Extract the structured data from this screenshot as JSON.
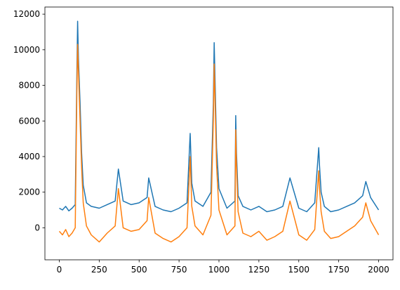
{
  "chart_data": {
    "type": "line",
    "title": "",
    "xlabel": "",
    "ylabel": "",
    "xlim": [
      -90,
      2090
    ],
    "ylim": [
      -1800,
      12400
    ],
    "grid": false,
    "legend": "none",
    "x_ticks": [
      0,
      250,
      500,
      750,
      1000,
      1250,
      1500,
      1750,
      2000
    ],
    "y_ticks": [
      0,
      2000,
      4000,
      6000,
      8000,
      10000,
      12000
    ],
    "x_tick_labels": [
      "0",
      "250",
      "500",
      "750",
      "1000",
      "1250",
      "1500",
      "1750",
      "2000"
    ],
    "y_tick_labels": [
      "0",
      "2000",
      "4000",
      "6000",
      "8000",
      "10000",
      "12000"
    ],
    "series": [
      {
        "color": "#1f77b4",
        "x": [
          0,
          20,
          40,
          60,
          80,
          100,
          110,
          115,
          120,
          130,
          140,
          150,
          170,
          200,
          250,
          300,
          350,
          370,
          400,
          450,
          500,
          550,
          560,
          600,
          650,
          700,
          750,
          800,
          820,
          830,
          850,
          900,
          950,
          965,
          970,
          975,
          985,
          1000,
          1050,
          1100,
          1105,
          1110,
          1120,
          1150,
          1200,
          1250,
          1300,
          1350,
          1400,
          1445,
          1500,
          1550,
          1600,
          1625,
          1630,
          1640,
          1660,
          1700,
          1750,
          1800,
          1850,
          1900,
          1920,
          1950,
          2000
        ],
        "values": [
          1100,
          1000,
          1200,
          950,
          1100,
          1300,
          8500,
          11600,
          9500,
          7000,
          4200,
          2400,
          1400,
          1200,
          1100,
          1300,
          1500,
          3300,
          1500,
          1300,
          1400,
          1700,
          2800,
          1200,
          1000,
          900,
          1100,
          1400,
          5300,
          2500,
          1500,
          1200,
          2000,
          7000,
          10400,
          8500,
          4500,
          2200,
          1100,
          1500,
          6300,
          4200,
          1800,
          1200,
          1000,
          1200,
          900,
          1000,
          1200,
          2800,
          1100,
          900,
          1400,
          4500,
          3500,
          2000,
          1200,
          900,
          1000,
          1200,
          1400,
          1800,
          2600,
          1700,
          1000
        ]
      },
      {
        "color": "#ff7f0e",
        "x": [
          0,
          20,
          40,
          60,
          80,
          100,
          110,
          115,
          120,
          130,
          140,
          150,
          170,
          200,
          250,
          300,
          350,
          370,
          400,
          450,
          500,
          550,
          560,
          600,
          650,
          700,
          750,
          800,
          820,
          830,
          850,
          900,
          950,
          965,
          970,
          975,
          985,
          1000,
          1050,
          1100,
          1105,
          1110,
          1120,
          1150,
          1200,
          1250,
          1300,
          1350,
          1400,
          1445,
          1500,
          1550,
          1600,
          1625,
          1630,
          1640,
          1660,
          1700,
          1750,
          1800,
          1850,
          1900,
          1920,
          1950,
          2000
        ],
        "values": [
          -200,
          -400,
          -100,
          -500,
          -300,
          0,
          7500,
          10300,
          8800,
          6000,
          3400,
          1400,
          100,
          -400,
          -800,
          -300,
          100,
          2200,
          0,
          -200,
          -100,
          400,
          1700,
          -300,
          -600,
          -800,
          -500,
          0,
          4000,
          1200,
          100,
          -400,
          700,
          6000,
          9200,
          7400,
          3500,
          1000,
          -400,
          100,
          5500,
          3500,
          900,
          -300,
          -500,
          -200,
          -700,
          -500,
          -200,
          1500,
          -400,
          -700,
          -100,
          3200,
          2200,
          900,
          -200,
          -600,
          -500,
          -200,
          100,
          600,
          1400,
          400,
          -400
        ]
      }
    ]
  }
}
